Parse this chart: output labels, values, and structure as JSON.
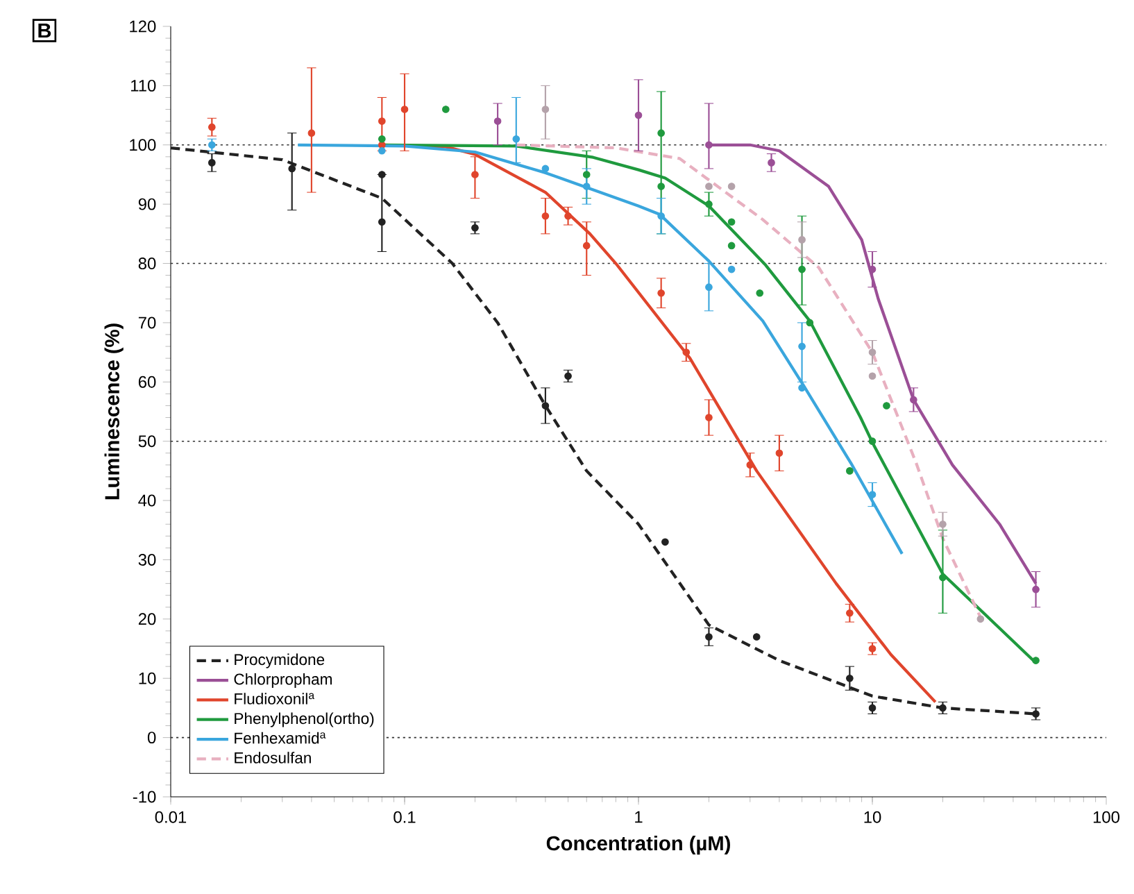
{
  "chart_data": {
    "type": "line",
    "title": "B",
    "xlabel": "Concentration (µM)",
    "ylabel": "Luminescence (%)",
    "log": "x",
    "xlim": [
      0.01,
      100
    ],
    "ylim": [
      -10,
      120
    ],
    "xticks": [
      0.01,
      0.1,
      1,
      10,
      100
    ],
    "yticks": [
      -10,
      0,
      10,
      20,
      30,
      40,
      50,
      60,
      70,
      80,
      90,
      100,
      110,
      120
    ],
    "legend": "bottom left",
    "ref_lines": [
      {
        "axis": "y",
        "value": 0,
        "line_style": "dotted",
        "color": "#333333"
      },
      {
        "axis": "y",
        "value": 50,
        "line_style": "dotted",
        "color": "#333333"
      },
      {
        "axis": "y",
        "value": 80,
        "line_style": "dotted",
        "color": "#333333"
      },
      {
        "axis": "y",
        "value": 100,
        "line_style": "dotted",
        "color": "#333333"
      }
    ],
    "series": [
      {
        "name": "Procymidone",
        "color": "#222222",
        "line_style": "dashed",
        "marker": "none",
        "x": [
          0.01,
          0.03,
          0.08,
          0.16,
          0.25,
          0.4,
          0.6,
          1,
          2,
          4,
          10,
          20,
          50
        ],
        "values": [
          99.5,
          97.5,
          91,
          80,
          70,
          56,
          45,
          36,
          19,
          13,
          7,
          5,
          4
        ]
      },
      {
        "name": "Chlorpropham",
        "color": "#9b4f96",
        "line_style": "solid",
        "marker": "none",
        "x": [
          2,
          3,
          4,
          6.5,
          9,
          10.6,
          15,
          22,
          35,
          50
        ],
        "values": [
          100,
          100,
          99,
          93,
          84,
          74,
          57,
          46,
          36,
          26
        ]
      },
      {
        "name": "Fludioxonil$^{a}$",
        "color": "#e0452c",
        "line_style": "solid",
        "marker": "none",
        "x": [
          0.08,
          0.15,
          0.2,
          0.4,
          0.62,
          0.8,
          1.66,
          3.2,
          7,
          12,
          18.6
        ],
        "values": [
          100,
          99.7,
          98.4,
          92,
          85,
          80,
          64,
          45,
          26,
          14,
          6
        ]
      },
      {
        "name": "Phenylphenol(ortho)",
        "color": "#1f9a3e",
        "line_style": "solid",
        "marker": "none",
        "x": [
          0.08,
          0.3,
          0.64,
          1,
          1.3,
          2,
          3.5,
          5.4,
          8.9,
          10,
          20,
          50
        ],
        "values": [
          100,
          99.8,
          97.9,
          95.8,
          94.4,
          89.7,
          79.7,
          70.3,
          54,
          49.8,
          27.6,
          12.6
        ]
      },
      {
        "name": "Fenhexamid$^{a}$",
        "color": "#3aa6dd",
        "line_style": "solid",
        "marker": "none",
        "x": [
          0.035,
          0.1,
          0.2,
          0.4,
          1,
          1.23,
          2,
          3.4,
          5.1,
          8.1,
          13.4
        ],
        "values": [
          100,
          99.8,
          98.8,
          95.3,
          89.7,
          88.3,
          80.4,
          70.3,
          59.3,
          46.3,
          31
        ]
      },
      {
        "name": "Endosulfan",
        "color": "#e8b0c0",
        "line_style": "dashed",
        "marker": "none",
        "x": [
          0.3,
          0.8,
          1.5,
          3.4,
          5.9,
          10,
          15.4,
          20,
          29
        ],
        "values": [
          100,
          99.5,
          97.7,
          87.4,
          79.3,
          65,
          46.3,
          33.6,
          20.3
        ]
      },
      {
        "type": "scatter",
        "color": "#222222",
        "marker": "circle",
        "x": [
          0.015,
          0.033,
          0.08,
          0.08,
          0.2,
          0.4,
          0.5,
          1.3,
          2,
          3.2,
          8,
          10,
          20,
          50
        ],
        "values": [
          97,
          96,
          95,
          87,
          86,
          56,
          61,
          33,
          17,
          17,
          10,
          5,
          5,
          4
        ],
        "errors": [
          1.5,
          [
            89,
            102
          ],
          null,
          [
            82,
            95
          ],
          1,
          3,
          1,
          null,
          1.5,
          null,
          2,
          1,
          1,
          1
        ]
      },
      {
        "type": "scatter",
        "color": "#9b4f96",
        "marker": "circle",
        "x": [
          0.25,
          1,
          2,
          3.7,
          10,
          15,
          50
        ],
        "values": [
          104,
          105,
          100,
          97,
          79,
          57,
          25
        ],
        "errors": [
          [
            100,
            107
          ],
          [
            99,
            111
          ],
          [
            96,
            107
          ],
          1.5,
          [
            76,
            82
          ],
          2,
          3
        ]
      },
      {
        "type": "scatter",
        "color": "#e0452c",
        "marker": "circle",
        "x": [
          0.015,
          0.04,
          0.08,
          0.08,
          0.1,
          0.2,
          0.4,
          0.5,
          0.6,
          1.25,
          1.6,
          2,
          3,
          4,
          8,
          10
        ],
        "values": [
          103,
          102,
          104,
          100,
          106,
          95,
          88,
          88,
          83,
          75,
          65,
          54,
          46,
          48,
          21,
          15
        ],
        "errors": [
          1.5,
          [
            92,
            113
          ],
          [
            99,
            108
          ],
          null,
          [
            99,
            112
          ],
          [
            91,
            98
          ],
          [
            85,
            91
          ],
          1.5,
          [
            78,
            87
          ],
          2.5,
          1.5,
          3,
          2,
          [
            45,
            51
          ],
          1.5,
          1
        ]
      },
      {
        "type": "scatter",
        "color": "#1f9a3e",
        "marker": "circle",
        "x": [
          0.08,
          0.15,
          0.6,
          1.25,
          1.25,
          2,
          2.5,
          2.5,
          3.3,
          5,
          5.4,
          8,
          10,
          11.5,
          20,
          50
        ],
        "values": [
          101,
          106,
          95,
          102,
          93,
          90,
          87,
          83,
          75,
          79,
          70,
          45,
          50,
          56,
          27,
          13
        ],
        "errors": [
          null,
          null,
          4,
          [
            85,
            109
          ],
          null,
          2,
          null,
          null,
          null,
          [
            73,
            88
          ],
          null,
          null,
          null,
          null,
          [
            21,
            35
          ],
          null
        ]
      },
      {
        "type": "scatter",
        "color": "#3aa6dd",
        "marker": "circle",
        "x": [
          0.015,
          0.08,
          0.3,
          0.4,
          0.6,
          1.25,
          2,
          2.5,
          5,
          5,
          10
        ],
        "values": [
          100,
          99,
          101,
          96,
          93,
          88,
          76,
          79,
          66,
          59,
          41
        ],
        "errors": [
          1,
          null,
          [
            97,
            108
          ],
          null,
          3,
          3,
          [
            72,
            80
          ],
          null,
          [
            60,
            70
          ],
          null,
          2
        ]
      },
      {
        "type": "scatter",
        "color": "#b4a2aa",
        "marker": "circle",
        "x": [
          0.4,
          2,
          2.5,
          5,
          10,
          10,
          20,
          29
        ],
        "values": [
          106,
          93,
          93,
          84,
          65,
          61,
          36,
          20
        ],
        "errors": [
          [
            101,
            110
          ],
          null,
          null,
          3,
          2,
          null,
          2,
          null
        ]
      }
    ]
  }
}
